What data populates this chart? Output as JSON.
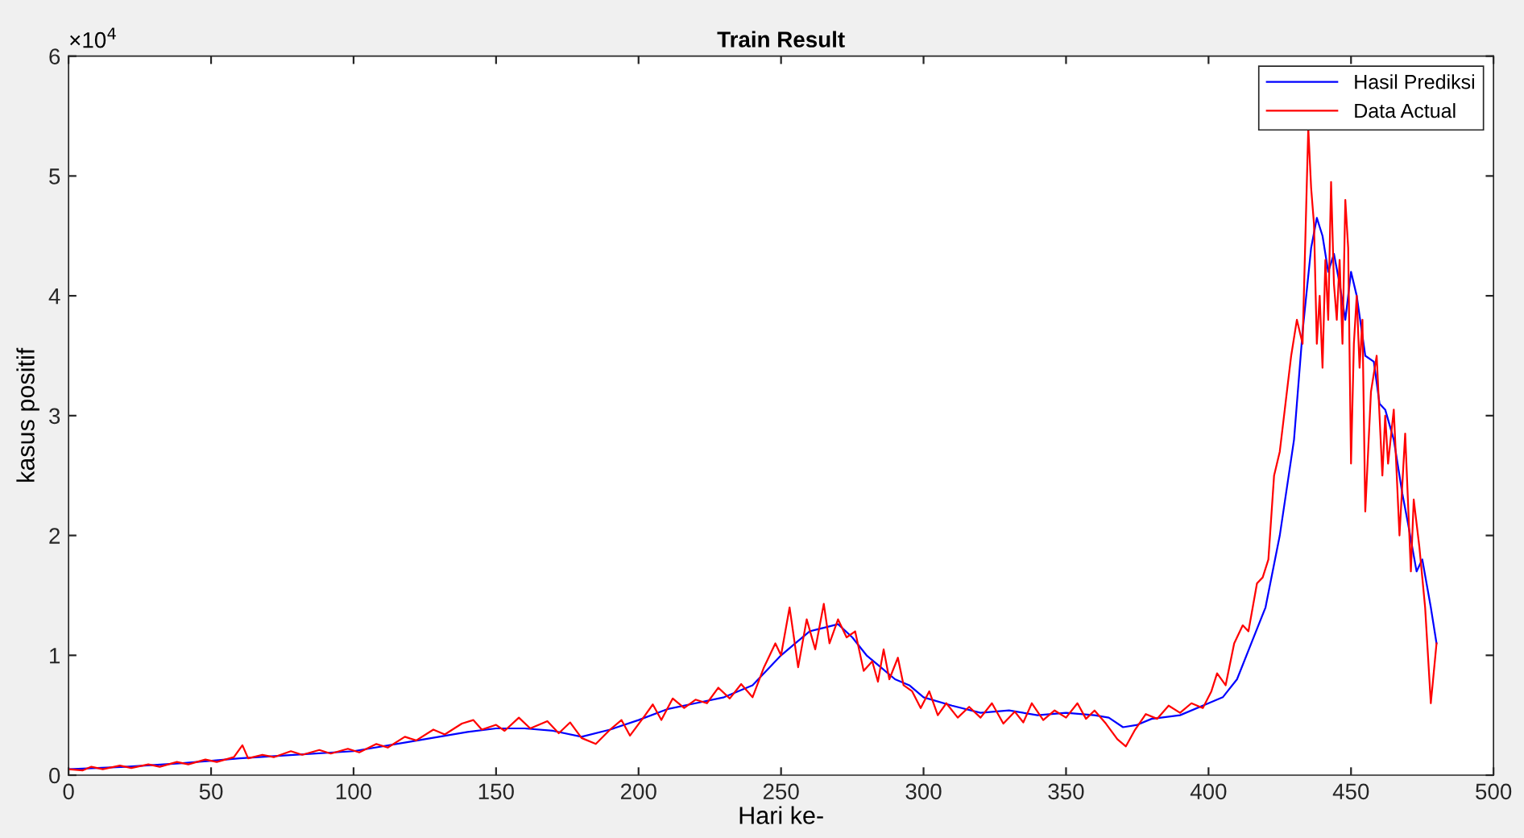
{
  "chart_data": {
    "type": "line",
    "title": "Train Result",
    "xlabel": "Hari ke-",
    "ylabel": "kasus positif",
    "annotations": [
      "×10$^{4}$"
    ],
    "xlim": [
      0,
      500
    ],
    "xticks": [
      0,
      50,
      100,
      150,
      200,
      250,
      300,
      350,
      400,
      450,
      500
    ],
    "ylim": [
      0,
      6
    ],
    "yticks": [
      0,
      1,
      2,
      3,
      4,
      5,
      6
    ],
    "grid": false,
    "legend": "top right",
    "marker": "none",
    "line_style": "solid",
    "series": [
      {
        "name": "Hasil Prediksi",
        "color": "#0000ff",
        "x": [
          0,
          20,
          40,
          60,
          80,
          100,
          120,
          140,
          150,
          160,
          170,
          180,
          190,
          200,
          210,
          220,
          230,
          240,
          250,
          255,
          260,
          265,
          270,
          275,
          280,
          285,
          290,
          295,
          300,
          310,
          320,
          330,
          340,
          350,
          360,
          365,
          370,
          375,
          380,
          390,
          400,
          405,
          410,
          415,
          420,
          425,
          430,
          433,
          436,
          438,
          440,
          442,
          444,
          446,
          448,
          450,
          452,
          455,
          458,
          460,
          462,
          465,
          468,
          470,
          473,
          475,
          478,
          480
        ],
        "values": [
          0.05,
          0.07,
          0.1,
          0.14,
          0.17,
          0.2,
          0.28,
          0.36,
          0.39,
          0.39,
          0.37,
          0.32,
          0.38,
          0.46,
          0.55,
          0.6,
          0.65,
          0.75,
          1.0,
          1.1,
          1.2,
          1.23,
          1.26,
          1.15,
          1.0,
          0.9,
          0.8,
          0.75,
          0.65,
          0.58,
          0.52,
          0.54,
          0.5,
          0.52,
          0.5,
          0.48,
          0.4,
          0.42,
          0.47,
          0.5,
          0.6,
          0.65,
          0.8,
          1.1,
          1.4,
          2.0,
          2.8,
          3.7,
          4.4,
          4.65,
          4.5,
          4.2,
          4.35,
          4.1,
          3.8,
          4.2,
          4.0,
          3.5,
          3.45,
          3.1,
          3.05,
          2.8,
          2.35,
          2.1,
          1.7,
          1.8,
          1.4,
          1.1
        ]
      },
      {
        "name": "Data Actual",
        "color": "#ff0000",
        "x": [
          0,
          5,
          8,
          12,
          18,
          22,
          28,
          32,
          38,
          42,
          48,
          52,
          58,
          61,
          63,
          68,
          72,
          78,
          82,
          88,
          92,
          98,
          102,
          108,
          112,
          118,
          122,
          128,
          132,
          138,
          142,
          145,
          150,
          153,
          158,
          162,
          168,
          172,
          176,
          180,
          185,
          190,
          194,
          197,
          202,
          205,
          208,
          212,
          216,
          220,
          224,
          228,
          232,
          236,
          240,
          244,
          248,
          250,
          253,
          256,
          259,
          262,
          265,
          267,
          270,
          273,
          276,
          279,
          282,
          284,
          286,
          288,
          291,
          293,
          296,
          299,
          302,
          305,
          308,
          312,
          316,
          320,
          324,
          328,
          332,
          335,
          338,
          342,
          346,
          350,
          354,
          357,
          360,
          364,
          368,
          371,
          374,
          378,
          382,
          386,
          390,
          394,
          398,
          401,
          403,
          406,
          409,
          412,
          414,
          417,
          419,
          421,
          423,
          425,
          427,
          429,
          431,
          433,
          434,
          435,
          436,
          437,
          438,
          439,
          440,
          441,
          442,
          443,
          444,
          445,
          446,
          447,
          448,
          449,
          450,
          451,
          452,
          453,
          454,
          455,
          457,
          459,
          461,
          462,
          463,
          465,
          467,
          469,
          471,
          472,
          474,
          476,
          478,
          480
        ],
        "values": [
          0.05,
          0.04,
          0.07,
          0.05,
          0.08,
          0.06,
          0.09,
          0.07,
          0.11,
          0.09,
          0.13,
          0.11,
          0.15,
          0.25,
          0.14,
          0.17,
          0.15,
          0.2,
          0.17,
          0.21,
          0.18,
          0.22,
          0.19,
          0.26,
          0.23,
          0.32,
          0.29,
          0.38,
          0.34,
          0.43,
          0.46,
          0.38,
          0.42,
          0.37,
          0.48,
          0.39,
          0.45,
          0.35,
          0.44,
          0.31,
          0.26,
          0.38,
          0.46,
          0.33,
          0.49,
          0.59,
          0.46,
          0.64,
          0.56,
          0.63,
          0.6,
          0.73,
          0.64,
          0.76,
          0.65,
          0.9,
          1.1,
          1.0,
          1.4,
          0.9,
          1.3,
          1.05,
          1.43,
          1.1,
          1.3,
          1.15,
          1.2,
          0.87,
          0.95,
          0.78,
          1.05,
          0.8,
          0.98,
          0.75,
          0.7,
          0.56,
          0.7,
          0.5,
          0.6,
          0.48,
          0.57,
          0.48,
          0.6,
          0.43,
          0.53,
          0.44,
          0.6,
          0.46,
          0.54,
          0.48,
          0.6,
          0.47,
          0.54,
          0.43,
          0.3,
          0.24,
          0.37,
          0.51,
          0.47,
          0.58,
          0.52,
          0.6,
          0.56,
          0.7,
          0.85,
          0.75,
          1.1,
          1.25,
          1.2,
          1.6,
          1.65,
          1.8,
          2.5,
          2.7,
          3.1,
          3.5,
          3.8,
          3.6,
          4.5,
          5.4,
          4.9,
          4.6,
          3.6,
          4.0,
          3.4,
          4.3,
          3.8,
          4.95,
          4.1,
          3.8,
          4.3,
          3.6,
          4.8,
          4.4,
          2.6,
          3.6,
          4.0,
          3.4,
          3.8,
          2.2,
          3.2,
          3.5,
          2.5,
          3.0,
          2.6,
          3.05,
          2.0,
          2.85,
          1.7,
          2.3,
          1.9,
          1.4,
          0.6,
          1.1
        ]
      }
    ]
  }
}
